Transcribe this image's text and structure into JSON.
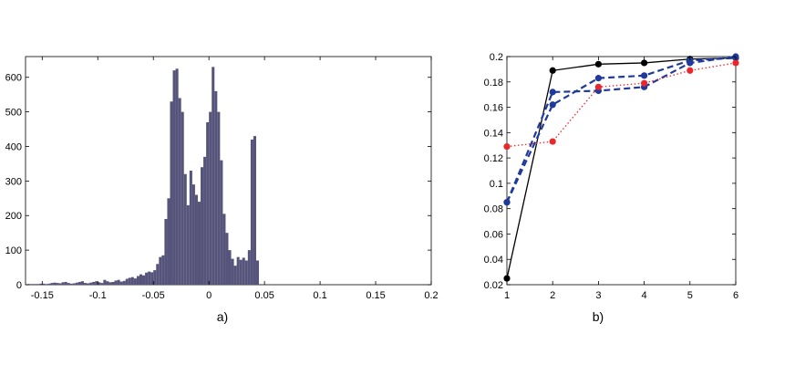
{
  "captions": {
    "a": "a)",
    "b": "b)"
  },
  "chart_data": [
    {
      "type": "bar",
      "title": "",
      "xlabel": "",
      "ylabel": "",
      "xlim": [
        -0.165,
        0.2
      ],
      "ylim": [
        0,
        660
      ],
      "xticks": [
        "-0.15",
        "-0.1",
        "-0.05",
        "0",
        "0.05",
        "0.1",
        "0.15",
        "0.2"
      ],
      "xtick_values": [
        -0.15,
        -0.1,
        -0.05,
        0,
        0.05,
        0.1,
        0.15,
        0.2
      ],
      "yticks": [
        "0",
        "100",
        "200",
        "300",
        "400",
        "500",
        "600"
      ],
      "ytick_values": [
        0,
        100,
        200,
        300,
        400,
        500,
        600
      ],
      "bar_color": "#56547a",
      "bin_width": 0.0025,
      "bin_start": -0.1625,
      "values": [
        2,
        2,
        2,
        2,
        3,
        3,
        2,
        3,
        5,
        6,
        5,
        4,
        7,
        8,
        5,
        3,
        4,
        6,
        8,
        10,
        5,
        4,
        6,
        8,
        10,
        7,
        5,
        14,
        10,
        7,
        8,
        12,
        14,
        9,
        11,
        17,
        20,
        22,
        18,
        25,
        30,
        27,
        35,
        38,
        36,
        42,
        60,
        80,
        85,
        190,
        250,
        530,
        620,
        625,
        540,
        500,
        320,
        230,
        330,
        290,
        260,
        240,
        340,
        370,
        470,
        500,
        630,
        560,
        500,
        360,
        205,
        150,
        100,
        75,
        55,
        80,
        72,
        78,
        70,
        100,
        420,
        430,
        70
      ]
    },
    {
      "type": "line",
      "title": "",
      "xlabel": "",
      "ylabel": "",
      "xlim": [
        1,
        6
      ],
      "ylim": [
        0.02,
        0.2
      ],
      "xticks": [
        "1",
        "2",
        "3",
        "4",
        "5",
        "6"
      ],
      "xtick_values": [
        1,
        2,
        3,
        4,
        5,
        6
      ],
      "yticks": [
        "0.02",
        "0.04",
        "0.06",
        "0.08",
        "0.1",
        "0.12",
        "0.14",
        "0.16",
        "0.18",
        "0.2"
      ],
      "ytick_values": [
        0.02,
        0.04,
        0.06,
        0.08,
        0.1,
        0.12,
        0.14,
        0.16,
        0.18,
        0.2
      ],
      "x": [
        1,
        2,
        3,
        4,
        5,
        6
      ],
      "series": [
        {
          "values": [
            0.025,
            0.189,
            0.194,
            0.195,
            0.198,
            0.199
          ],
          "color": "#000000",
          "style": "solid"
        },
        {
          "values": [
            0.085,
            0.162,
            0.183,
            0.185,
            0.197,
            0.199
          ],
          "color": "#1f3a9a",
          "style": "dashed"
        },
        {
          "values": [
            0.085,
            0.172,
            0.173,
            0.176,
            0.195,
            0.2
          ],
          "color": "#1f3a9a",
          "style": "dashed"
        },
        {
          "values": [
            0.129,
            0.133,
            0.176,
            0.179,
            0.189,
            0.195
          ],
          "color": "#e8282d",
          "style": "dotted"
        }
      ]
    }
  ]
}
